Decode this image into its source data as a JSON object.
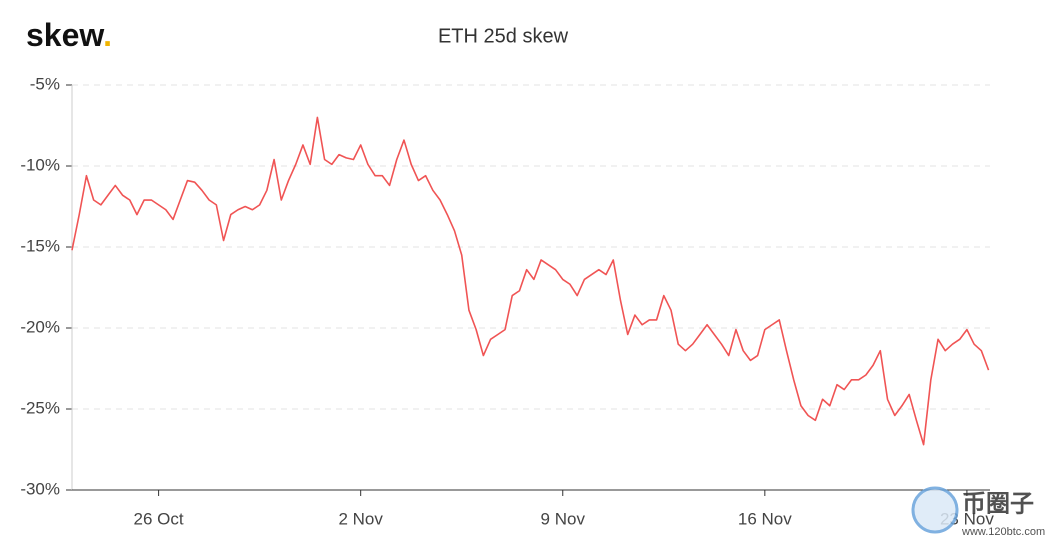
{
  "logo": {
    "text": "skew",
    "dot": "."
  },
  "watermark": {
    "text": "币圈子",
    "url": "www.120btc.com"
  },
  "chart_data": {
    "type": "line",
    "title": "ETH 25d skew",
    "x": [
      23,
      23.25,
      23.5,
      23.75,
      24,
      24.25,
      24.5,
      24.75,
      25,
      25.25,
      25.5,
      25.75,
      26,
      26.25,
      26.5,
      26.75,
      27,
      27.25,
      27.5,
      27.75,
      28,
      28.25,
      28.5,
      28.75,
      29,
      29.25,
      29.5,
      29.75,
      30,
      30.25,
      30.5,
      30.75,
      31,
      31.25,
      31.5,
      31.75,
      32,
      32.25,
      32.5,
      32.75,
      33,
      33.25,
      33.5,
      33.75,
      34,
      34.25,
      34.5,
      34.75,
      35,
      35.25,
      35.5,
      35.75,
      36,
      36.25,
      36.5,
      36.75,
      37,
      37.25,
      37.5,
      37.75,
      38,
      38.25,
      38.5,
      38.75,
      39,
      39.25,
      39.5,
      39.75,
      40,
      40.25,
      40.5,
      40.75,
      41,
      41.25,
      41.5,
      41.75,
      42,
      42.25,
      42.5,
      42.75,
      43,
      43.25,
      43.5,
      43.75,
      44,
      44.25,
      44.5,
      44.75,
      45,
      45.25,
      45.5,
      45.75,
      46,
      46.25,
      46.5,
      46.75,
      47,
      47.25,
      47.5,
      47.75,
      48,
      48.25,
      48.5,
      48.75,
      49,
      49.25,
      49.5,
      49.75,
      50,
      50.25,
      50.5,
      50.75,
      51,
      51.25,
      51.5,
      51.75,
      52,
      52.25,
      52.5,
      52.75,
      53,
      53.25,
      53.5,
      53.75,
      54,
      54.25,
      54.5,
      54.75
    ],
    "series": [
      {
        "name": "ETH 25d skew",
        "color": "#f05454",
        "values": [
          -15.2,
          -13.0,
          -10.6,
          -12.1,
          -12.4,
          -11.8,
          -11.2,
          -11.8,
          -12.1,
          -13.0,
          -12.1,
          -12.1,
          -12.4,
          -12.7,
          -13.3,
          -12.1,
          -10.9,
          -11.0,
          -11.5,
          -12.1,
          -12.4,
          -14.6,
          -13.0,
          -12.7,
          -12.5,
          -12.7,
          -12.4,
          -11.5,
          -9.6,
          -12.1,
          -10.9,
          -9.9,
          -8.7,
          -9.9,
          -7.0,
          -9.6,
          -9.9,
          -9.3,
          -9.5,
          -9.6,
          -8.7,
          -9.9,
          -10.6,
          -10.6,
          -11.2,
          -9.6,
          -8.4,
          -9.9,
          -10.9,
          -10.6,
          -11.5,
          -12.1,
          -13.0,
          -14.0,
          -15.5,
          -18.9,
          -20.1,
          -21.7,
          -20.7,
          -20.4,
          -20.1,
          -18.0,
          -17.7,
          -16.4,
          -17.0,
          -15.8,
          -16.1,
          -16.4,
          -17.0,
          -17.3,
          -18.0,
          -17.0,
          -16.7,
          -16.4,
          -16.7,
          -15.8,
          -18.3,
          -20.4,
          -19.2,
          -19.8,
          -19.5,
          -19.5,
          -18.0,
          -18.9,
          -21.0,
          -21.4,
          -21.0,
          -20.4,
          -19.8,
          -20.4,
          -21.0,
          -21.7,
          -20.1,
          -21.4,
          -22.0,
          -21.7,
          -20.1,
          -19.8,
          -19.5,
          -21.4,
          -23.2,
          -24.8,
          -25.4,
          -25.7,
          -24.4,
          -24.8,
          -23.5,
          -23.8,
          -23.2,
          -23.2,
          -22.9,
          -22.3,
          -21.4,
          -24.4,
          -25.4,
          -24.8,
          -24.1,
          -25.7,
          -27.2,
          -23.2,
          -20.7,
          -21.4,
          -21.0,
          -20.7,
          -20.1,
          -21.0,
          -21.4,
          -22.6
        ]
      }
    ],
    "xlim": [
      23,
      54.8
    ],
    "xticks": [
      {
        "value": 26,
        "label": "26 Oct"
      },
      {
        "value": 33,
        "label": "2 Nov"
      },
      {
        "value": 40,
        "label": "9 Nov"
      },
      {
        "value": 47,
        "label": "16 Nov"
      },
      {
        "value": 54,
        "label": "23 Nov"
      }
    ],
    "ylim": [
      -30,
      -5
    ],
    "yticks": [
      {
        "value": -30,
        "label": "-30%"
      },
      {
        "value": -25,
        "label": "-25%"
      },
      {
        "value": -20,
        "label": "-20%"
      },
      {
        "value": -15,
        "label": "-15%"
      },
      {
        "value": -10,
        "label": "-10%"
      },
      {
        "value": -5,
        "label": "-5%"
      }
    ],
    "grid": true
  }
}
